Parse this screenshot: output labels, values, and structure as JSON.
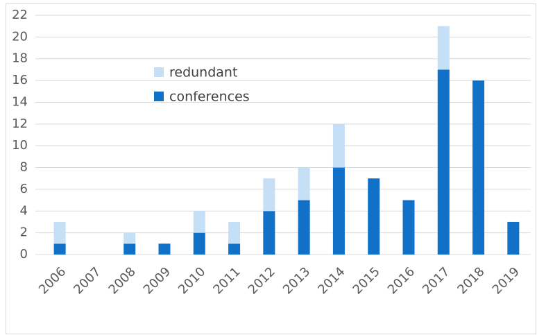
{
  "chart_data": {
    "type": "stacked_bar",
    "categories": [
      "2006",
      "2007",
      "2008",
      "2009",
      "2010",
      "2011",
      "2012",
      "2013",
      "2014",
      "2015",
      "2016",
      "2017",
      "2018",
      "2019"
    ],
    "series": [
      {
        "name": "conferences",
        "color": "#1170c8",
        "values": [
          1,
          0,
          1,
          1,
          2,
          1,
          4,
          5,
          8,
          7,
          5,
          17,
          16,
          3
        ]
      },
      {
        "name": "redundant",
        "color": "#c5dff7",
        "values": [
          2,
          0,
          1,
          0,
          2,
          2,
          3,
          3,
          4,
          0,
          0,
          4,
          0,
          0
        ]
      }
    ],
    "ylim": [
      0,
      22
    ],
    "yticks": [
      0,
      2,
      4,
      6,
      8,
      10,
      12,
      14,
      16,
      18,
      20,
      22
    ],
    "grid": true
  }
}
